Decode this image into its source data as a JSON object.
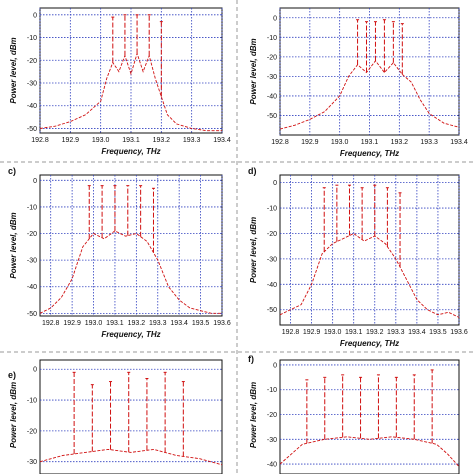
{
  "chart_data": [
    {
      "panel": "a",
      "type": "line",
      "label": "",
      "xlabel": "Frequency, THz",
      "ylabel": "Power level, dBm",
      "xticks": [
        "192.8",
        "192.9",
        "193.0",
        "193.1",
        "193.2",
        "193.3",
        "193.4"
      ],
      "yticks": [
        "0",
        "-10",
        "-20",
        "-30",
        "-40",
        "-50"
      ],
      "xlim": [
        192.8,
        193.4
      ],
      "ylim": [
        -52,
        3
      ],
      "grid": true,
      "series": [
        {
          "color": "#d01010",
          "x": [
            192.8,
            192.85,
            192.9,
            192.95,
            193.0,
            193.02,
            193.04,
            193.06,
            193.08,
            193.1,
            193.12,
            193.14,
            193.16,
            193.18,
            193.2,
            193.22,
            193.25,
            193.3,
            193.35,
            193.4
          ],
          "y": [
            -50,
            -49,
            -47,
            -44,
            -38,
            -28,
            -21,
            -25,
            -18,
            -26,
            -17,
            -25,
            -18,
            -28,
            -36,
            -44,
            -48,
            -50,
            -51,
            -51
          ],
          "peaks": [
            {
              "x": 193.04,
              "y": -1
            },
            {
              "x": 193.08,
              "y": 0
            },
            {
              "x": 193.12,
              "y": 0
            },
            {
              "x": 193.16,
              "y": 0
            },
            {
              "x": 193.2,
              "y": -3
            }
          ]
        }
      ]
    },
    {
      "panel": "b",
      "type": "line",
      "label": "",
      "xlabel": "Frequency, THz",
      "ylabel": "Power level, dBm",
      "xticks": [
        "192.8",
        "192.9",
        "193.0",
        "193.1",
        "193.2",
        "193.3",
        "193.4"
      ],
      "yticks": [
        "0",
        "-10",
        "-20",
        "-30",
        "-40",
        "-50"
      ],
      "xlim": [
        192.8,
        193.4
      ],
      "ylim": [
        -60,
        5
      ],
      "grid": true,
      "series": [
        {
          "color": "#d01010",
          "x": [
            192.8,
            192.85,
            192.9,
            192.95,
            193.0,
            193.03,
            193.06,
            193.09,
            193.12,
            193.15,
            193.18,
            193.21,
            193.24,
            193.27,
            193.3,
            193.35,
            193.4
          ],
          "y": [
            -57,
            -55,
            -52,
            -48,
            -40,
            -30,
            -24,
            -28,
            -22,
            -28,
            -23,
            -29,
            -33,
            -42,
            -49,
            -54,
            -56
          ],
          "peaks": [
            {
              "x": 193.06,
              "y": -1
            },
            {
              "x": 193.09,
              "y": -2
            },
            {
              "x": 193.12,
              "y": -2
            },
            {
              "x": 193.15,
              "y": -1
            },
            {
              "x": 193.18,
              "y": -2
            },
            {
              "x": 193.21,
              "y": -3
            }
          ]
        }
      ]
    },
    {
      "panel": "c",
      "type": "line",
      "label": "c)",
      "xlabel": "Frequency, THz",
      "ylabel": "Power level, dBm",
      "xticks": [
        "192.8",
        "192.9",
        "193.0",
        "193.1",
        "193.2",
        "193.3",
        "193.4",
        "193.5",
        "193.6"
      ],
      "yticks": [
        "0",
        "-10",
        "-20",
        "-30",
        "-40",
        "-50"
      ],
      "xlim": [
        192.75,
        193.6
      ],
      "ylim": [
        -51,
        2
      ],
      "grid": true,
      "series": [
        {
          "color": "#d01010",
          "x": [
            192.75,
            192.8,
            192.85,
            192.9,
            192.95,
            193.0,
            193.05,
            193.1,
            193.15,
            193.2,
            193.25,
            193.3,
            193.35,
            193.4,
            193.45,
            193.5,
            193.55,
            193.6
          ],
          "y": [
            -50,
            -48,
            -44,
            -37,
            -25,
            -20,
            -22,
            -19,
            -21,
            -20,
            -23,
            -30,
            -40,
            -45,
            -48,
            -49,
            -50,
            -50
          ],
          "peaks": [
            {
              "x": 192.98,
              "y": -2
            },
            {
              "x": 193.04,
              "y": -2
            },
            {
              "x": 193.1,
              "y": -2
            },
            {
              "x": 193.16,
              "y": -2
            },
            {
              "x": 193.22,
              "y": -2
            },
            {
              "x": 193.28,
              "y": -3
            }
          ]
        }
      ]
    },
    {
      "panel": "d",
      "type": "line",
      "label": "d)",
      "xlabel": "Frequency, THz",
      "ylabel": "Power level, dBm",
      "xticks": [
        "192.8",
        "192.9",
        "193.0",
        "193.1",
        "193.2",
        "193.3",
        "193.4",
        "193.5",
        "193.6"
      ],
      "yticks": [
        "0",
        "-10",
        "-20",
        "-30",
        "-40",
        "-50"
      ],
      "xlim": [
        192.75,
        193.6
      ],
      "ylim": [
        -56,
        3
      ],
      "grid": true,
      "series": [
        {
          "color": "#d01010",
          "x": [
            192.75,
            192.8,
            192.85,
            192.9,
            192.95,
            193.0,
            193.05,
            193.1,
            193.15,
            193.2,
            193.25,
            193.3,
            193.35,
            193.4,
            193.45,
            193.5,
            193.55,
            193.6
          ],
          "y": [
            -52,
            -50,
            -48,
            -40,
            -28,
            -24,
            -22,
            -20,
            -23,
            -21,
            -24,
            -30,
            -38,
            -46,
            -50,
            -52,
            -51,
            -53
          ],
          "peaks": [
            {
              "x": 192.96,
              "y": -2
            },
            {
              "x": 193.02,
              "y": -1
            },
            {
              "x": 193.08,
              "y": -1
            },
            {
              "x": 193.14,
              "y": -2
            },
            {
              "x": 193.2,
              "y": -1
            },
            {
              "x": 193.26,
              "y": -2
            },
            {
              "x": 193.32,
              "y": -4
            }
          ]
        }
      ]
    },
    {
      "panel": "e",
      "type": "line",
      "label": "e)",
      "xlabel": "",
      "ylabel": "Power level, dBm",
      "xticks": [],
      "yticks": [
        "0",
        "-10",
        "-20",
        "-30"
      ],
      "xlim": [
        192.8,
        193.6
      ],
      "ylim": [
        -34,
        3
      ],
      "grid": true,
      "series": [
        {
          "color": "#d01010",
          "x": [
            192.8,
            192.9,
            193.0,
            193.1,
            193.2,
            193.3,
            193.4,
            193.5,
            193.6
          ],
          "y": [
            -30,
            -28,
            -27,
            -26,
            -27,
            -26,
            -28,
            -29,
            -31
          ],
          "peaks": [
            {
              "x": 192.95,
              "y": -1
            },
            {
              "x": 193.03,
              "y": -5
            },
            {
              "x": 193.11,
              "y": -4
            },
            {
              "x": 193.19,
              "y": -1
            },
            {
              "x": 193.27,
              "y": -3
            },
            {
              "x": 193.35,
              "y": -1
            },
            {
              "x": 193.43,
              "y": -4
            }
          ]
        }
      ]
    },
    {
      "panel": "f",
      "type": "line",
      "label": "f)",
      "xlabel": "",
      "ylabel": "Power level, dBm",
      "xticks": [],
      "yticks": [
        "0",
        "-10",
        "-20",
        "-30",
        "-40"
      ],
      "xlim": [
        192.8,
        193.6
      ],
      "ylim": [
        -44,
        2
      ],
      "grid": true,
      "series": [
        {
          "color": "#d01010",
          "x": [
            192.8,
            192.85,
            192.9,
            193.0,
            193.1,
            193.2,
            193.3,
            193.4,
            193.5,
            193.55,
            193.6
          ],
          "y": [
            -40,
            -36,
            -32,
            -30,
            -29,
            -30,
            -29,
            -30,
            -32,
            -36,
            -41
          ],
          "peaks": [
            {
              "x": 192.92,
              "y": -6
            },
            {
              "x": 193.0,
              "y": -5
            },
            {
              "x": 193.08,
              "y": -4
            },
            {
              "x": 193.16,
              "y": -5
            },
            {
              "x": 193.24,
              "y": -4
            },
            {
              "x": 193.32,
              "y": -5
            },
            {
              "x": 193.4,
              "y": -4
            },
            {
              "x": 193.48,
              "y": -2
            }
          ]
        }
      ]
    }
  ]
}
